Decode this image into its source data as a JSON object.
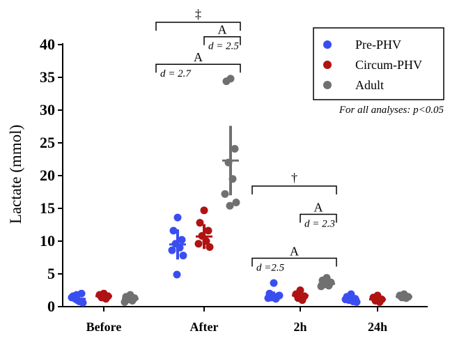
{
  "chart_data": {
    "type": "scatter",
    "ylabel": "Lactate (mmol)",
    "ylim": [
      0,
      40
    ],
    "yticks": [
      0,
      5,
      10,
      15,
      20,
      25,
      30,
      35,
      40
    ],
    "ytick_labels": [
      "0",
      "5",
      "10",
      "15",
      "20",
      "25",
      "30",
      "35",
      "40"
    ],
    "categories": [
      "Before",
      "After",
      "2h",
      "24h"
    ],
    "series": [
      {
        "name": "Pre-PHV",
        "color": "#3a4ef0",
        "points": [
          [
            1.0,
            1.6,
            2.0,
            1.2,
            0.8,
            1.4,
            0.6,
            1.8
          ],
          [
            13.6,
            11.6,
            10.2,
            9.6,
            9.0,
            8.6,
            7.8,
            4.9
          ],
          [
            3.6,
            2.0,
            1.6,
            1.4,
            1.2,
            1.3,
            1.7,
            1.5
          ],
          [
            1.9,
            1.5,
            1.2,
            1.0,
            0.8,
            1.1,
            0.7
          ]
        ],
        "mean": [
          1.2,
          9.5,
          1.6,
          1.1
        ],
        "sd": [
          0.4,
          2.3,
          0.7,
          0.4
        ]
      },
      {
        "name": "Circum-PHV",
        "color": "#b01313",
        "points": [
          [
            2.0,
            1.8,
            1.6,
            1.4,
            1.2
          ],
          [
            14.7,
            12.8,
            11.6,
            10.8,
            10.0,
            9.6,
            9.1
          ],
          [
            2.5,
            1.9,
            1.6,
            1.3,
            1.0
          ],
          [
            1.7,
            1.4,
            1.1,
            0.9,
            0.7
          ]
        ],
        "mean": [
          1.6,
          10.7,
          1.7,
          1.1
        ],
        "sd": [
          0.3,
          1.9,
          0.5,
          0.3
        ]
      },
      {
        "name": "Adult",
        "color": "#707070",
        "points": [
          [
            1.8,
            1.5,
            1.3,
            1.1,
            0.9,
            0.7
          ],
          [
            34.8,
            34.4,
            24.1,
            22.0,
            19.5,
            17.2,
            15.9,
            15.4
          ],
          [
            4.4,
            4.0,
            3.7,
            3.4,
            3.2,
            3.1
          ],
          [
            1.9,
            1.7,
            1.5,
            1.4,
            1.3
          ]
        ],
        "mean": [
          1.2,
          22.3,
          3.5,
          1.5
        ],
        "sd": [
          0.4,
          5.3,
          0.5,
          0.3
        ]
      }
    ],
    "legend": {
      "position": "top-right",
      "entries": [
        "Pre-PHV",
        "Circum-PHV",
        "Adult"
      ]
    },
    "note": "For all analyses: p<0.05",
    "annotations": [
      {
        "category": "After",
        "from_series": "Pre-PHV",
        "to_series": "Adult",
        "symbol": "‡",
        "height": 43.4
      },
      {
        "category": "After",
        "from_series": "Circum-PHV",
        "to_series": "Adult",
        "letter": "A",
        "effect": "d = 2.5",
        "height": 41.2
      },
      {
        "category": "After",
        "from_series": "Pre-PHV",
        "to_series": "Adult",
        "letter": "A",
        "effect": "d = 2.7",
        "height": 37.0
      },
      {
        "category": "2h",
        "from_series": "Pre-PHV",
        "to_series": "Adult",
        "symbol": "†",
        "height": 18.4
      },
      {
        "category": "2h",
        "from_series": "Circum-PHV",
        "to_series": "Adult",
        "letter": "A",
        "effect": "d = 2.3",
        "height": 14.1
      },
      {
        "category": "2h",
        "from_series": "Pre-PHV",
        "to_series": "Adult",
        "letter": "A",
        "effect": "d =2.5",
        "height": 7.4
      }
    ]
  }
}
